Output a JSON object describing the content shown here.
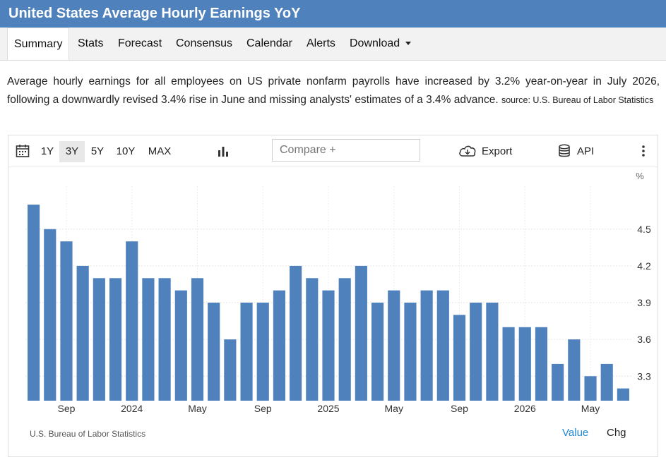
{
  "header": {
    "title": "United States Average Hourly Earnings YoY"
  },
  "nav": {
    "tabs": [
      "Summary",
      "Stats",
      "Forecast",
      "Consensus",
      "Calendar",
      "Alerts",
      "Download"
    ],
    "active": "Summary"
  },
  "description": {
    "text": "Average hourly earnings for all employees on US private nonfarm payrolls have increased by 3.2% year-on-year in July 2026, following a downwardly revised 3.4% rise in June and missing analysts' estimates of a 3.4% advance.",
    "source": "source: U.S. Bureau of Labor Statistics"
  },
  "toolbar": {
    "ranges": [
      "1Y",
      "3Y",
      "5Y",
      "10Y",
      "MAX"
    ],
    "selected_range": "3Y",
    "compare_placeholder": "Compare +",
    "export_label": "Export",
    "api_label": "API"
  },
  "footer": {
    "source": "U.S. Bureau of Labor Statistics",
    "value_label": "Value",
    "chg_label": "Chg"
  },
  "colors": {
    "bar": "#4f81bd",
    "header": "#4f81bd",
    "link": "#1e88d4"
  },
  "chart_data": {
    "type": "bar",
    "unit": "%",
    "categories": [
      "Jul 2023",
      "Aug 2023",
      "Sep 2023",
      "Oct 2023",
      "Nov 2023",
      "Dec 2023",
      "Jan 2024",
      "Feb 2024",
      "Mar 2024",
      "Apr 2024",
      "May 2024",
      "Jun 2024",
      "Jul 2024",
      "Aug 2024",
      "Sep 2024",
      "Oct 2024",
      "Nov 2024",
      "Dec 2024",
      "Jan 2025",
      "Feb 2025",
      "Mar 2025",
      "Apr 2025",
      "May 2025",
      "Jun 2025",
      "Jul 2025",
      "Aug 2025",
      "Sep 2025",
      "Oct 2025",
      "Nov 2025",
      "Dec 2025",
      "Jan 2026",
      "Feb 2026",
      "Mar 2026",
      "Apr 2026",
      "May 2026",
      "Jun 2026",
      "Jul 2026"
    ],
    "values": [
      4.7,
      4.5,
      4.4,
      4.2,
      4.1,
      4.1,
      4.4,
      4.1,
      4.1,
      4.0,
      4.1,
      3.9,
      3.6,
      3.9,
      3.9,
      4.0,
      4.2,
      4.1,
      4.0,
      4.1,
      4.2,
      3.9,
      4.0,
      3.9,
      4.0,
      4.0,
      3.8,
      3.9,
      3.9,
      3.7,
      3.7,
      3.7,
      3.4,
      3.6,
      3.3,
      3.4,
      3.2
    ],
    "x_tick_labels": [
      {
        "index": 2,
        "label": "Sep"
      },
      {
        "index": 6,
        "label": "2024"
      },
      {
        "index": 10,
        "label": "May"
      },
      {
        "index": 14,
        "label": "Sep"
      },
      {
        "index": 18,
        "label": "2025"
      },
      {
        "index": 22,
        "label": "May"
      },
      {
        "index": 26,
        "label": "Sep"
      },
      {
        "index": 30,
        "label": "2026"
      },
      {
        "index": 34,
        "label": "May"
      }
    ],
    "y_ticks": [
      3.3,
      3.6,
      3.9,
      4.2,
      4.5
    ],
    "ylim": [
      3.1,
      4.85
    ],
    "grid": true,
    "legend": "none"
  }
}
